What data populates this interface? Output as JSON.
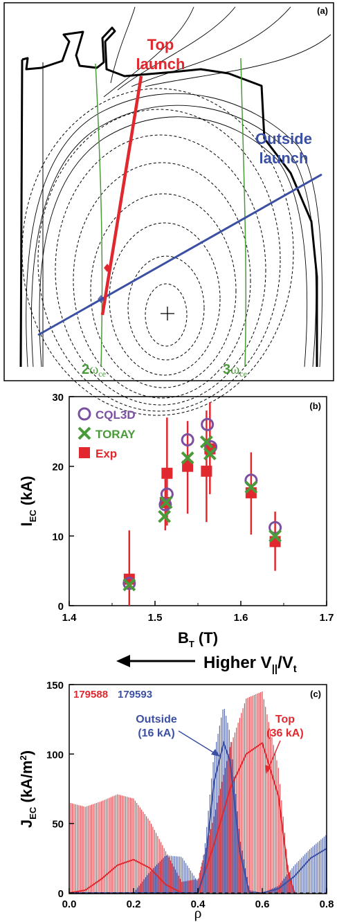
{
  "colors": {
    "red": "#e0282e",
    "blue": "#3b4fa3",
    "green": "#4a9a3a",
    "purple": "#7a4fa0",
    "black": "#000000"
  },
  "chart_data": [
    {
      "type": "diagram",
      "panel_label": "(a)",
      "beams": [
        {
          "name": "Top launch",
          "label_line1": "Top",
          "label_line2": "launch",
          "color": "#e0282e"
        },
        {
          "name": "Outside launch",
          "label_line1": "Outside",
          "label_line2": "launch",
          "color": "#3b4fa3"
        }
      ],
      "resonances": [
        {
          "label_num": "2",
          "label_sym": "ω",
          "label_sub": "ce",
          "color": "#4a9a3a"
        },
        {
          "label_num": "3",
          "label_sym": "ω",
          "label_sub": "ce",
          "color": "#4a9a3a"
        }
      ]
    },
    {
      "type": "scatter",
      "panel_label": "(b)",
      "xlabel_main": "B",
      "xlabel_sub": "T",
      "xlabel_unit": " (T)",
      "ylabel_main": "I",
      "ylabel_sub": "EC",
      "ylabel_unit": " (kA)",
      "xlim": [
        1.4,
        1.7
      ],
      "ylim": [
        0,
        30
      ],
      "xticks": [
        1.4,
        1.5,
        1.6,
        1.7
      ],
      "xtick_labels": [
        "1.4",
        "1.5",
        "1.6",
        "1.7"
      ],
      "yticks": [
        0,
        10,
        20,
        30
      ],
      "ytick_labels": [
        "0",
        "10",
        "20",
        "30"
      ],
      "legend_position": "top-left",
      "series": [
        {
          "name": "CQL3D",
          "marker": "circle",
          "color": "#7a4fa0",
          "x": [
            1.47,
            1.512,
            1.514,
            1.538,
            1.561,
            1.565,
            1.612,
            1.64
          ],
          "y": [
            3.2,
            14.5,
            16.0,
            23.8,
            26.0,
            22.8,
            18.0,
            11.2
          ]
        },
        {
          "name": "TORAY",
          "marker": "x",
          "color": "#4a9a3a",
          "x": [
            1.47,
            1.511,
            1.513,
            1.538,
            1.56,
            1.564,
            1.612,
            1.64
          ],
          "y": [
            3.0,
            12.8,
            14.8,
            21.2,
            23.5,
            21.8,
            17.0,
            10.0
          ]
        },
        {
          "name": "Exp",
          "marker": "square",
          "color": "#e0282e",
          "x": [
            1.47,
            1.512,
            1.514,
            1.538,
            1.56,
            1.564,
            1.612,
            1.64
          ],
          "y": [
            3.8,
            14.8,
            19.0,
            20.0,
            19.3,
            22.5,
            16.2,
            9.2
          ],
          "err_low": [
            0.0,
            10.8,
            11.5,
            13.2,
            12.0,
            16.0,
            10.2,
            5.0
          ],
          "err_high": [
            10.8,
            18.2,
            27.0,
            26.5,
            28.0,
            29.2,
            22.0,
            13.5
          ]
        }
      ]
    },
    {
      "type": "annotation",
      "arrow_text_main": "Higher V",
      "arrow_text_sub": "||",
      "arrow_text_end": "/V",
      "arrow_text_sub2": "t",
      "arrow_direction": "left"
    },
    {
      "type": "area",
      "panel_label": "(c)",
      "xlabel": "ρ",
      "ylabel_main": "J",
      "ylabel_sub": "EC",
      "ylabel_unit": " (kA/m",
      "ylabel_sup": "2",
      "ylabel_close": ")",
      "xlim": [
        0.0,
        0.8
      ],
      "ylim": [
        0,
        150
      ],
      "xticks": [
        0.0,
        0.2,
        0.4,
        0.6,
        0.8
      ],
      "xtick_labels": [
        "0.0",
        "0.2",
        "0.4",
        "0.6",
        "0.8"
      ],
      "yticks": [
        0,
        50,
        100,
        150
      ],
      "ytick_labels": [
        "0",
        "50",
        "100",
        "150"
      ],
      "shot_labels": [
        {
          "text": "179588",
          "color": "#e0282e"
        },
        {
          "text": "179593",
          "color": "#3b4fa3"
        }
      ],
      "annotations": [
        {
          "line1": "Outside",
          "line2": "(16 kA)",
          "color": "#3b4fa3"
        },
        {
          "line1": "Top",
          "line2": "(36 kA)",
          "color": "#e0282e"
        }
      ],
      "series": [
        {
          "name": "Top",
          "color": "#e0282e",
          "band_x": [
            0.0,
            0.05,
            0.1,
            0.15,
            0.2,
            0.25,
            0.3,
            0.35,
            0.4,
            0.45,
            0.5,
            0.55,
            0.6,
            0.65,
            0.68,
            0.7
          ],
          "band_y": [
            65,
            62,
            66,
            71,
            68,
            52,
            30,
            8,
            10,
            55,
            105,
            140,
            145,
            90,
            20,
            0
          ],
          "x": [
            0.0,
            0.05,
            0.1,
            0.15,
            0.2,
            0.25,
            0.3,
            0.35,
            0.4,
            0.45,
            0.5,
            0.55,
            0.6,
            0.65,
            0.68,
            0.7
          ],
          "y": [
            0,
            2,
            10,
            20,
            24,
            18,
            6,
            0,
            0,
            35,
            75,
            100,
            108,
            70,
            15,
            0
          ]
        },
        {
          "name": "Outside",
          "color": "#3b4fa3",
          "band_x": [
            0.0,
            0.2,
            0.25,
            0.3,
            0.35,
            0.4,
            0.42,
            0.45,
            0.48,
            0.5,
            0.53,
            0.56,
            0.6,
            0.65,
            0.7,
            0.75,
            0.8
          ],
          "band_y": [
            0,
            0,
            15,
            27,
            26,
            8,
            30,
            100,
            135,
            115,
            40,
            2,
            0,
            5,
            20,
            32,
            42
          ],
          "x": [
            0.0,
            0.2,
            0.25,
            0.3,
            0.35,
            0.4,
            0.42,
            0.45,
            0.48,
            0.5,
            0.53,
            0.56,
            0.6,
            0.65,
            0.7,
            0.75,
            0.8
          ],
          "y": [
            0,
            0,
            0,
            0,
            0,
            0,
            15,
            80,
            108,
            95,
            30,
            0,
            0,
            3,
            12,
            25,
            32
          ]
        }
      ]
    }
  ]
}
